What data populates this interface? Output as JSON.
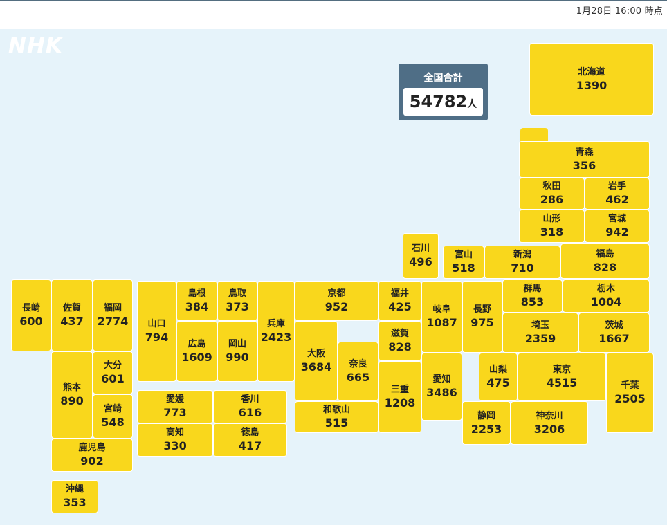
{
  "header": {
    "timestamp": "1月28日 16:00 時点"
  },
  "logo": "NHK",
  "total": {
    "label": "全国合計",
    "value": "54782",
    "unit": "人"
  },
  "chart_data": {
    "type": "table",
    "title": "",
    "prefectures": [
      {
        "name": "北海道",
        "value": 1390
      },
      {
        "name": "青森",
        "value": 356
      },
      {
        "name": "秋田",
        "value": 286
      },
      {
        "name": "岩手",
        "value": 462
      },
      {
        "name": "山形",
        "value": 318
      },
      {
        "name": "宮城",
        "value": 942
      },
      {
        "name": "石川",
        "value": 496
      },
      {
        "name": "富山",
        "value": 518
      },
      {
        "name": "新潟",
        "value": 710
      },
      {
        "name": "福島",
        "value": 828
      },
      {
        "name": "長崎",
        "value": 600
      },
      {
        "name": "佐賀",
        "value": 437
      },
      {
        "name": "福岡",
        "value": 2774
      },
      {
        "name": "山口",
        "value": 794
      },
      {
        "name": "島根",
        "value": 384
      },
      {
        "name": "鳥取",
        "value": 373
      },
      {
        "name": "兵庫",
        "value": 2423
      },
      {
        "name": "京都",
        "value": 952
      },
      {
        "name": "福井",
        "value": 425
      },
      {
        "name": "岐阜",
        "value": 1087
      },
      {
        "name": "長野",
        "value": 975
      },
      {
        "name": "群馬",
        "value": 853
      },
      {
        "name": "栃木",
        "value": 1004
      },
      {
        "name": "広島",
        "value": 1609
      },
      {
        "name": "岡山",
        "value": 990
      },
      {
        "name": "大阪",
        "value": 3684
      },
      {
        "name": "奈良",
        "value": 665
      },
      {
        "name": "滋賀",
        "value": 828
      },
      {
        "name": "埼玉",
        "value": 2359
      },
      {
        "name": "茨城",
        "value": 1667
      },
      {
        "name": "熊本",
        "value": 890
      },
      {
        "name": "大分",
        "value": 601
      },
      {
        "name": "宮崎",
        "value": 548
      },
      {
        "name": "三重",
        "value": 1208
      },
      {
        "name": "愛知",
        "value": 3486
      },
      {
        "name": "山梨",
        "value": 475
      },
      {
        "name": "東京",
        "value": 4515
      },
      {
        "name": "千葉",
        "value": 2505
      },
      {
        "name": "愛媛",
        "value": 773
      },
      {
        "name": "香川",
        "value": 616
      },
      {
        "name": "高知",
        "value": 330
      },
      {
        "name": "徳島",
        "value": 417
      },
      {
        "name": "和歌山",
        "value": 515
      },
      {
        "name": "静岡",
        "value": 2253
      },
      {
        "name": "神奈川",
        "value": 3206
      },
      {
        "name": "鹿児島",
        "value": 902
      },
      {
        "name": "沖縄",
        "value": 353
      }
    ]
  }
}
